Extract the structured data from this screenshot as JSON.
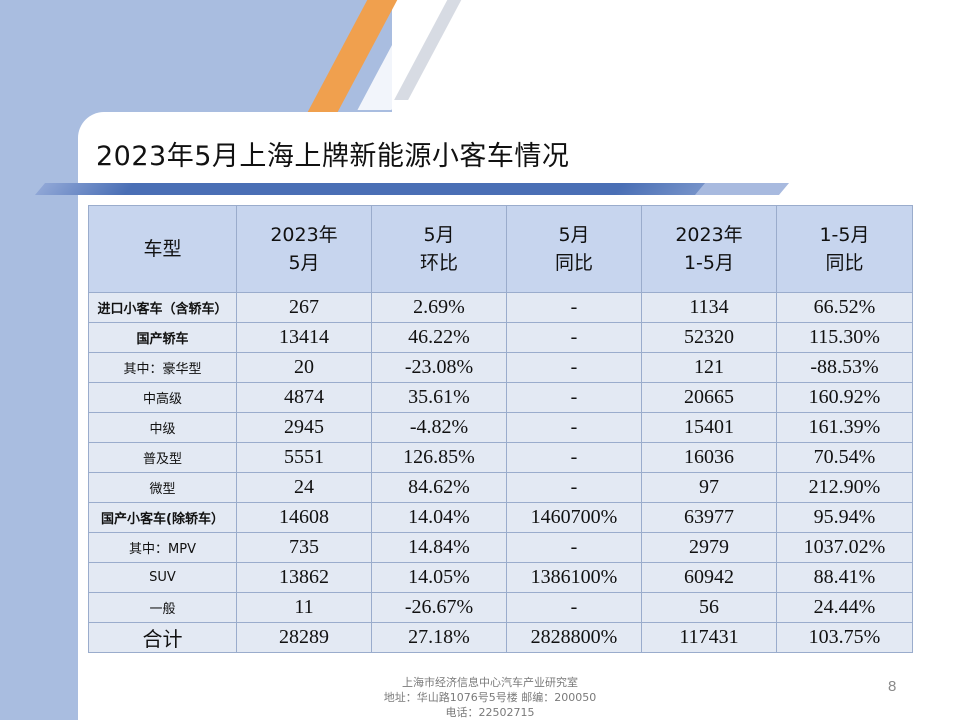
{
  "title": "2023年5月上海上牌新能源小客车情况",
  "headers": [
    "车型",
    "2023年\n5月",
    "5月\n环比",
    "5月\n同比",
    "2023年\n1-5月",
    "1-5月\n同比"
  ],
  "rows": [
    {
      "name": "进口小客车（含轿车）",
      "v": [
        "267",
        "2.69%",
        "-",
        "1134",
        "66.52%"
      ]
    },
    {
      "name": "国产轿车",
      "v": [
        "13414",
        "46.22%",
        "-",
        "52320",
        "115.30%"
      ]
    },
    {
      "name": "其中：豪华型",
      "v": [
        "20",
        "-23.08%",
        "-",
        "121",
        "-88.53%"
      ]
    },
    {
      "name": "中高级",
      "v": [
        "4874",
        "35.61%",
        "-",
        "20665",
        "160.92%"
      ]
    },
    {
      "name": "中级",
      "v": [
        "2945",
        "-4.82%",
        "-",
        "15401",
        "161.39%"
      ]
    },
    {
      "name": "普及型",
      "v": [
        "5551",
        "126.85%",
        "-",
        "16036",
        "70.54%"
      ]
    },
    {
      "name": "微型",
      "v": [
        "24",
        "84.62%",
        "-",
        "97",
        "212.90%"
      ]
    },
    {
      "name": "国产小客车(除轿车）",
      "v": [
        "14608",
        "14.04%",
        "1460700%",
        "63977",
        "95.94%"
      ]
    },
    {
      "name": "其中：MPV",
      "v": [
        "735",
        "14.84%",
        "-",
        "2979",
        "1037.02%"
      ]
    },
    {
      "name": "SUV",
      "v": [
        "13862",
        "14.05%",
        "1386100%",
        "60942",
        "88.41%"
      ]
    },
    {
      "name": "一般",
      "v": [
        "11",
        "-26.67%",
        "-",
        "56",
        "24.44%"
      ]
    },
    {
      "name": "合计",
      "v": [
        "28289",
        "27.18%",
        "2828800%",
        "117431",
        "103.75%"
      ]
    }
  ],
  "footer": {
    "line1": "上海市经济信息中心汽车产业研究室",
    "line2": "地址：华山路1076号5号楼    邮编：200050",
    "line3": "电话：22502715"
  },
  "page_number": "8"
}
